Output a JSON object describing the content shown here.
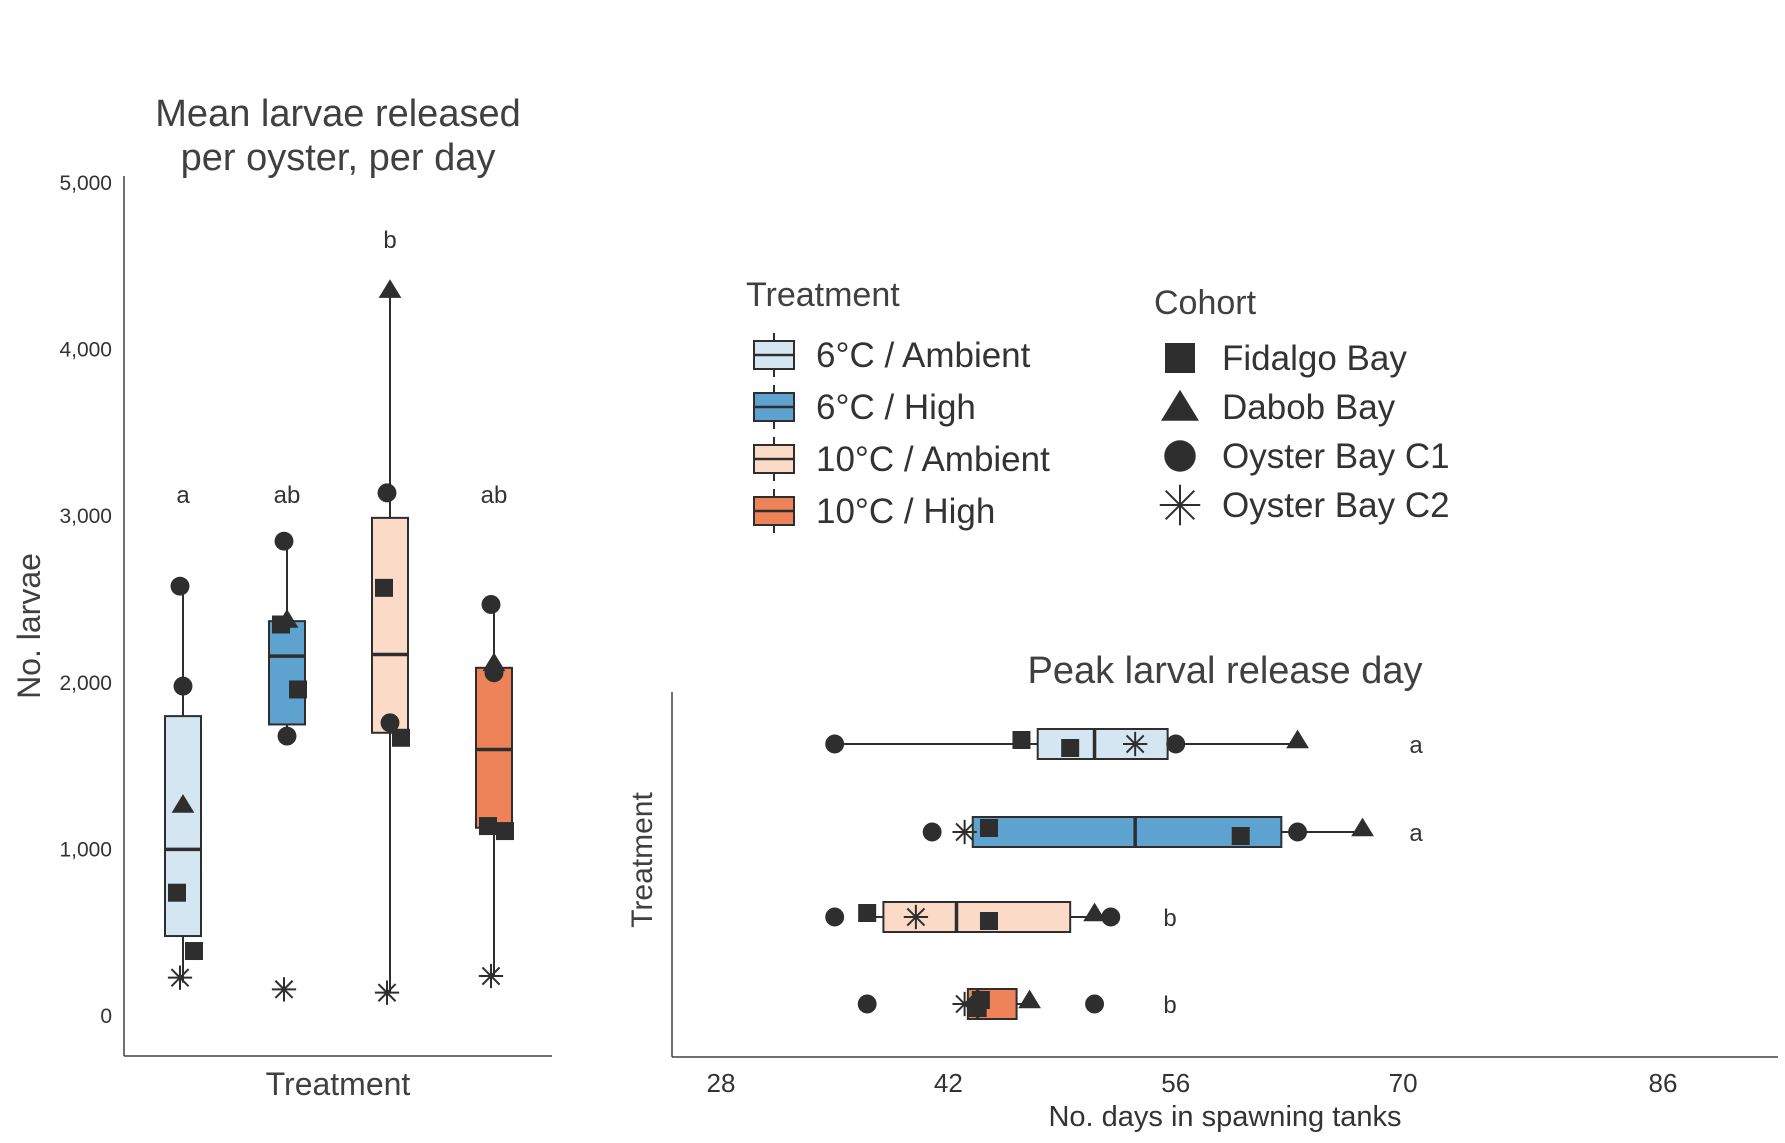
{
  "colors": {
    "6C_ambient": "#d4e6f1",
    "6C_high": "#5ea3cf",
    "10C_ambient": "#fbdac7",
    "10C_high": "#ee8259",
    "ink": "#2e2e2e"
  },
  "legend": {
    "treatment_title": "Treatment",
    "treatments": [
      {
        "label": "6°C / Ambient",
        "key": "6C_ambient"
      },
      {
        "label": "6°C / High",
        "key": "6C_high"
      },
      {
        "label": "10°C / Ambient",
        "key": "10C_ambient"
      },
      {
        "label": "10°C / High",
        "key": "10C_high"
      }
    ],
    "cohort_title": "Cohort",
    "cohorts": [
      {
        "label": "Fidalgo Bay",
        "shape": "square"
      },
      {
        "label": "Dabob Bay",
        "shape": "triangle"
      },
      {
        "label": "Oyster Bay C1",
        "shape": "circle"
      },
      {
        "label": "Oyster Bay C2",
        "shape": "asterisk"
      }
    ]
  },
  "chart_data": [
    {
      "type": "box",
      "orientation": "vertical",
      "title_lines": [
        "Mean larvae released",
        "per oyster, per day"
      ],
      "xlabel": "Treatment",
      "ylabel": "No. larvae",
      "ylim": [
        0,
        5000
      ],
      "yticks": [
        0,
        1000,
        2000,
        3000,
        4000,
        5000
      ],
      "ytick_labels": [
        "0",
        "1,000",
        "2,000",
        "3,000",
        "4,000",
        "5,000"
      ],
      "groups": [
        {
          "treatment": "6C_ambient",
          "q1": 480,
          "median": 1000,
          "q3": 1800,
          "whisker_low": 200,
          "whisker_high": 2580,
          "sig": "a",
          "points": [
            {
              "cohort": "square",
              "value": 740
            },
            {
              "cohort": "square",
              "value": 390
            },
            {
              "cohort": "triangle",
              "value": 1270
            },
            {
              "cohort": "circle",
              "value": 2580
            },
            {
              "cohort": "circle",
              "value": 1980
            },
            {
              "cohort": "asterisk",
              "value": 230
            }
          ]
        },
        {
          "treatment": "6C_high",
          "q1": 1750,
          "median": 2160,
          "q3": 2370,
          "whisker_low": 1680,
          "whisker_high": 2850,
          "sig": "ab",
          "points": [
            {
              "cohort": "square",
              "value": 2350
            },
            {
              "cohort": "square",
              "value": 1960
            },
            {
              "cohort": "triangle",
              "value": 2380
            },
            {
              "cohort": "circle",
              "value": 2850
            },
            {
              "cohort": "circle",
              "value": 1680
            },
            {
              "cohort": "asterisk",
              "value": 160
            }
          ]
        },
        {
          "treatment": "10C_ambient",
          "q1": 1700,
          "median": 2170,
          "q3": 2990,
          "whisker_low": 140,
          "whisker_high": 4360,
          "sig": "b",
          "points": [
            {
              "cohort": "square",
              "value": 2570
            },
            {
              "cohort": "square",
              "value": 1670
            },
            {
              "cohort": "triangle",
              "value": 4360
            },
            {
              "cohort": "circle",
              "value": 3140
            },
            {
              "cohort": "circle",
              "value": 1760
            },
            {
              "cohort": "asterisk",
              "value": 140
            }
          ]
        },
        {
          "treatment": "10C_high",
          "q1": 1130,
          "median": 1600,
          "q3": 2090,
          "whisker_low": 240,
          "whisker_high": 2470,
          "sig": "ab",
          "points": [
            {
              "cohort": "square",
              "value": 1140
            },
            {
              "cohort": "square",
              "value": 1110
            },
            {
              "cohort": "triangle",
              "value": 2120
            },
            {
              "cohort": "circle",
              "value": 2470
            },
            {
              "cohort": "circle",
              "value": 2060
            },
            {
              "cohort": "asterisk",
              "value": 240
            }
          ]
        }
      ]
    },
    {
      "type": "box",
      "orientation": "horizontal",
      "title": "Peak larval release day",
      "xlabel": "No. days in spawning tanks",
      "ylabel": "Treatment",
      "xlim": [
        25,
        91
      ],
      "xticks": [
        28,
        42,
        56,
        70,
        86
      ],
      "groups": [
        {
          "treatment": "6C_ambient",
          "q1": 47.5,
          "median": 51,
          "q3": 55.5,
          "whisker_low": 35,
          "whisker_high": 63.5,
          "sig": "a",
          "points": [
            {
              "cohort": "square",
              "value": 46.5
            },
            {
              "cohort": "square",
              "value": 49.5
            },
            {
              "cohort": "triangle",
              "value": 63.5
            },
            {
              "cohort": "circle",
              "value": 35
            },
            {
              "cohort": "circle",
              "value": 56
            },
            {
              "cohort": "asterisk",
              "value": 53.5
            }
          ]
        },
        {
          "treatment": "6C_high",
          "q1": 43.5,
          "median": 53.5,
          "q3": 62.5,
          "whisker_low": 42.5,
          "whisker_high": 67.5,
          "sig": "a",
          "points": [
            {
              "cohort": "square",
              "value": 44.5
            },
            {
              "cohort": "square",
              "value": 60
            },
            {
              "cohort": "triangle",
              "value": 67.5
            },
            {
              "cohort": "circle",
              "value": 41
            },
            {
              "cohort": "circle",
              "value": 63.5
            },
            {
              "cohort": "asterisk",
              "value": 43
            }
          ]
        },
        {
          "treatment": "10C_ambient",
          "q1": 38,
          "median": 42.5,
          "q3": 49.5,
          "whisker_low": 37,
          "whisker_high": 52,
          "sig": "b",
          "points": [
            {
              "cohort": "square",
              "value": 37
            },
            {
              "cohort": "square",
              "value": 44.5
            },
            {
              "cohort": "triangle",
              "value": 51
            },
            {
              "cohort": "circle",
              "value": 35
            },
            {
              "cohort": "circle",
              "value": 52
            },
            {
              "cohort": "asterisk",
              "value": 40
            }
          ]
        },
        {
          "treatment": "10C_high",
          "q1": 43.2,
          "median": 43.8,
          "q3": 46.2,
          "whisker_low": 42.8,
          "whisker_high": 47,
          "sig": "b",
          "points": [
            {
              "cohort": "square",
              "value": 44
            },
            {
              "cohort": "square",
              "value": 43.8
            },
            {
              "cohort": "triangle",
              "value": 47
            },
            {
              "cohort": "circle",
              "value": 37
            },
            {
              "cohort": "circle",
              "value": 51
            },
            {
              "cohort": "asterisk",
              "value": 43
            }
          ]
        }
      ]
    }
  ]
}
